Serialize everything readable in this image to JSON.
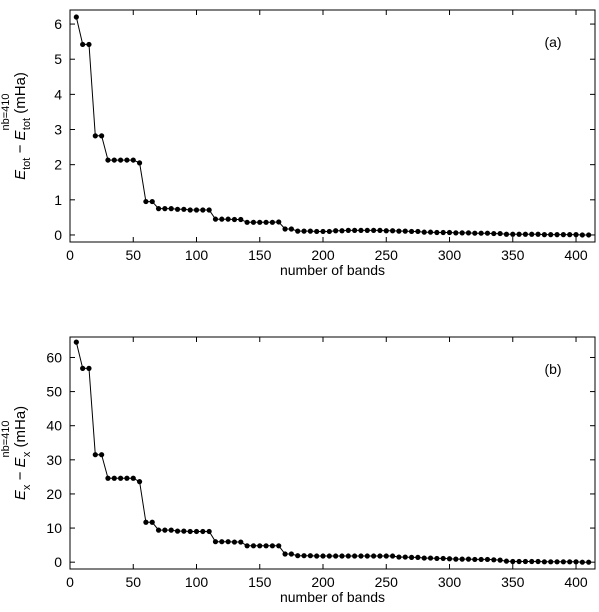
{
  "chart_data": [
    {
      "type": "line",
      "panel_label": "(a)",
      "xlabel": "number of bands",
      "ylabel": {
        "var": "E",
        "sub": "tot",
        "minus": " − E",
        "sup": "nb=410",
        "sub2": "tot",
        "unit": "(mHa)"
      },
      "xlim": [
        0,
        415
      ],
      "ylim": [
        -0.2,
        6.4
      ],
      "xticks": [
        0,
        50,
        100,
        150,
        200,
        250,
        300,
        350,
        400
      ],
      "yticks": [
        0,
        1,
        2,
        3,
        4,
        5,
        6
      ],
      "series": [
        {
          "x": [
            5,
            10,
            15,
            20,
            25,
            30,
            35,
            40,
            45,
            50,
            55,
            60,
            65,
            70,
            75,
            80,
            85,
            90,
            95,
            100,
            105,
            110,
            115,
            120,
            125,
            130,
            135,
            140,
            145,
            150,
            155,
            160,
            165,
            170,
            175,
            180,
            185,
            190,
            195,
            200,
            205,
            210,
            215,
            220,
            225,
            230,
            235,
            240,
            245,
            250,
            255,
            260,
            265,
            270,
            275,
            280,
            285,
            290,
            295,
            300,
            305,
            310,
            315,
            320,
            325,
            330,
            335,
            340,
            345,
            350,
            355,
            360,
            365,
            370,
            375,
            380,
            385,
            390,
            395,
            400,
            405,
            410
          ],
          "y": [
            6.2,
            5.42,
            5.42,
            2.82,
            2.82,
            2.13,
            2.13,
            2.13,
            2.13,
            2.13,
            2.05,
            0.95,
            0.95,
            0.75,
            0.75,
            0.75,
            0.73,
            0.73,
            0.71,
            0.71,
            0.71,
            0.71,
            0.45,
            0.45,
            0.45,
            0.44,
            0.44,
            0.36,
            0.36,
            0.36,
            0.36,
            0.36,
            0.37,
            0.17,
            0.17,
            0.11,
            0.11,
            0.11,
            0.1,
            0.1,
            0.1,
            0.12,
            0.12,
            0.13,
            0.13,
            0.13,
            0.13,
            0.13,
            0.13,
            0.12,
            0.12,
            0.11,
            0.11,
            0.1,
            0.1,
            0.08,
            0.08,
            0.07,
            0.07,
            0.07,
            0.06,
            0.06,
            0.06,
            0.05,
            0.05,
            0.05,
            0.04,
            0.04,
            0.02,
            0.02,
            0.02,
            0.02,
            0.02,
            0.02,
            0.01,
            0.01,
            0.01,
            0.01,
            0.01,
            0.01,
            0.0,
            0.0
          ]
        }
      ]
    },
    {
      "type": "line",
      "panel_label": "(b)",
      "xlabel": "number of bands",
      "ylabel": {
        "var": "E",
        "sub": "x",
        "minus": " − E",
        "sup": "nb=410",
        "sub2": "x",
        "unit": "(mHa)"
      },
      "xlim": [
        0,
        415
      ],
      "ylim": [
        -2,
        66
      ],
      "xticks": [
        0,
        50,
        100,
        150,
        200,
        250,
        300,
        350,
        400
      ],
      "yticks": [
        0,
        10,
        20,
        30,
        40,
        50,
        60
      ],
      "series": [
        {
          "x": [
            5,
            10,
            15,
            20,
            25,
            30,
            35,
            40,
            45,
            50,
            55,
            60,
            65,
            70,
            75,
            80,
            85,
            90,
            95,
            100,
            105,
            110,
            115,
            120,
            125,
            130,
            135,
            140,
            145,
            150,
            155,
            160,
            165,
            170,
            175,
            180,
            185,
            190,
            195,
            200,
            205,
            210,
            215,
            220,
            225,
            230,
            235,
            240,
            245,
            250,
            255,
            260,
            265,
            270,
            275,
            280,
            285,
            290,
            295,
            300,
            305,
            310,
            315,
            320,
            325,
            330,
            335,
            340,
            345,
            350,
            355,
            360,
            365,
            370,
            375,
            380,
            385,
            390,
            395,
            400,
            405,
            410
          ],
          "y": [
            64.5,
            56.8,
            56.8,
            31.5,
            31.5,
            24.6,
            24.6,
            24.6,
            24.6,
            24.6,
            23.6,
            11.7,
            11.7,
            9.4,
            9.4,
            9.4,
            9.1,
            9.1,
            9.0,
            9.0,
            9.0,
            9.0,
            6.0,
            6.0,
            6.0,
            5.9,
            5.9,
            4.8,
            4.8,
            4.8,
            4.8,
            4.8,
            4.8,
            2.4,
            2.4,
            1.9,
            1.9,
            1.9,
            1.8,
            1.8,
            1.8,
            1.8,
            1.8,
            1.8,
            1.8,
            1.8,
            1.8,
            1.8,
            1.8,
            1.8,
            1.8,
            1.5,
            1.5,
            1.4,
            1.4,
            1.2,
            1.2,
            1.1,
            1.1,
            1.0,
            0.9,
            0.9,
            0.9,
            0.8,
            0.8,
            0.8,
            0.7,
            0.6,
            0.3,
            0.2,
            0.2,
            0.2,
            0.2,
            0.2,
            0.1,
            0.1,
            0.1,
            0.1,
            0.1,
            0.1,
            0.0,
            0.0
          ]
        }
      ]
    }
  ]
}
